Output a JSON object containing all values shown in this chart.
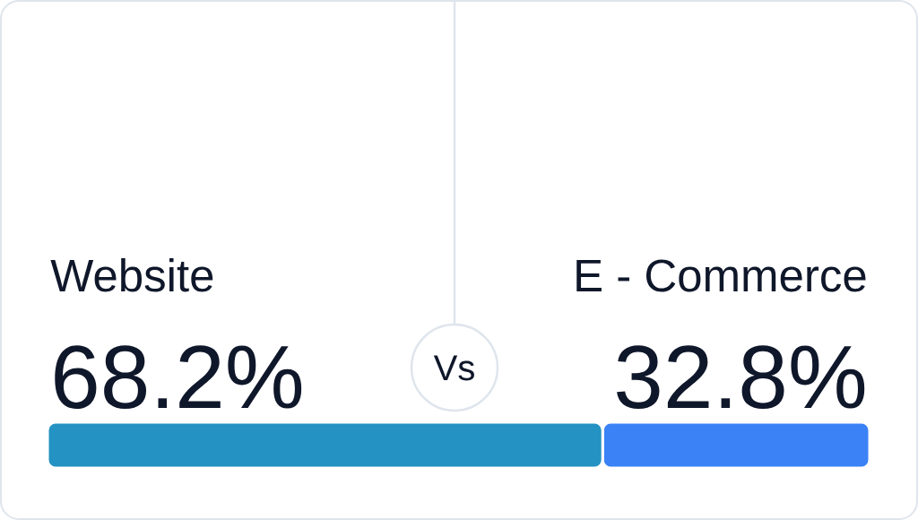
{
  "chart_data": {
    "type": "bar",
    "orientation": "horizontal",
    "stacked": true,
    "tick_labels": false,
    "categories": [
      null
    ],
    "series": [
      {
        "name": "Website",
        "color": "#2492c2",
        "values": [
          68.2
        ],
        "value_labels": [
          "68.2%"
        ]
      },
      {
        "name": "E - Commerce",
        "color": "#3b82f6",
        "values": [
          32.8
        ],
        "value_labels": [
          "32.8%"
        ]
      }
    ],
    "annotations": [
      "Vs"
    ]
  }
}
